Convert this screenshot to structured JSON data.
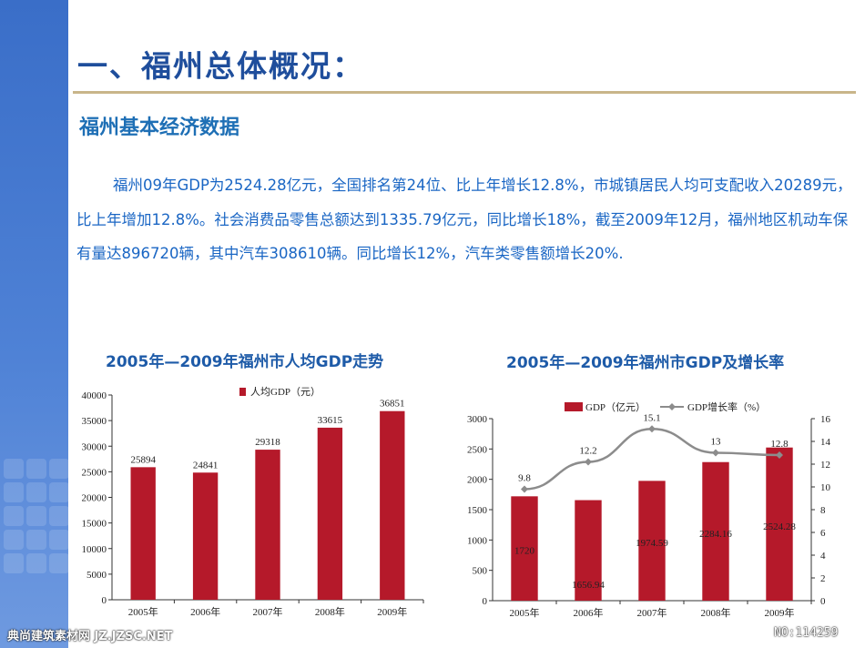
{
  "slide": {
    "title": "一、福州总体概况：",
    "subtitle": "福州基本经济数据",
    "paragraph": "福州09年GDP为2524.28亿元，全国排名第24位、比上年增长12.8%，市城镇居民人均可支配收入20289元，比上年增加12.8%。社会消费品零售总额达到1335.79亿元，同比增长18%，截至2009年12月，福州地区机动车保有量达896720辆，其中汽车308610辆。同比增长12%，汽车类零售额增长20%.",
    "watermark_left": "典尚建筑素材网 JZ.JZSC.NET",
    "watermark_right": "NO:114259"
  },
  "colors": {
    "bar": "#b5192a",
    "line": "#8c8c8c",
    "title_blue": "#1f4e9c",
    "text_blue": "#1a66c4"
  },
  "chart_data": [
    {
      "type": "bar",
      "title": "2005年—2009年福州市人均GDP走势",
      "categories": [
        "2005年",
        "2006年",
        "2007年",
        "2008年",
        "2009年"
      ],
      "series": [
        {
          "name": "人均GDP（元）",
          "values": [
            25894,
            24841,
            29318,
            33615,
            36851
          ]
        }
      ],
      "data_labels": [
        "25894",
        "24841",
        "29318",
        "33615",
        "36851"
      ],
      "ylim": [
        0,
        40000
      ],
      "yticks": [
        0,
        5000,
        10000,
        15000,
        20000,
        25000,
        30000,
        35000,
        40000
      ],
      "legend": "top",
      "grid": false
    },
    {
      "type": "bar",
      "title": "2005年—2009年福州市GDP及增长率",
      "categories": [
        "2005年",
        "2006年",
        "2007年",
        "2008年",
        "2009年"
      ],
      "series": [
        {
          "name": "GDP（亿元）",
          "type": "bar",
          "axis": "left",
          "values": [
            1720,
            1656.94,
            1974.59,
            2284.16,
            2524.28
          ],
          "data_labels": [
            "1720",
            "1656.94",
            "1974.59",
            "2284.16",
            "2524.28"
          ]
        },
        {
          "name": "GDP增长率（%）",
          "type": "line",
          "axis": "right",
          "values": [
            9.8,
            12.2,
            15.1,
            13,
            12.8
          ],
          "data_labels": [
            "9.8",
            "12.2",
            "15.1",
            "13",
            "12.8"
          ]
        }
      ],
      "ylim": [
        0,
        3000
      ],
      "yticks": [
        0,
        500,
        1000,
        1500,
        2000,
        2500,
        3000
      ],
      "y2lim": [
        0,
        16
      ],
      "y2ticks": [
        0,
        2,
        4,
        6,
        8,
        10,
        12,
        14,
        16
      ],
      "legend": "top",
      "grid": false
    }
  ]
}
